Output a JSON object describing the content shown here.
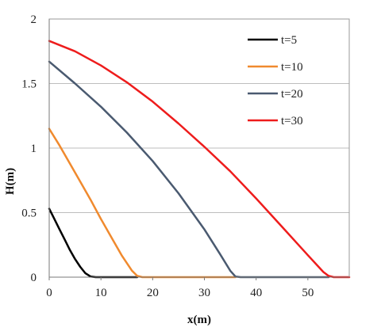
{
  "chart_data": {
    "type": "line",
    "title": "",
    "xlabel": "x(m)",
    "ylabel": "H(m)",
    "xlim": [
      0,
      58
    ],
    "ylim": [
      0,
      2
    ],
    "x_ticks": [
      0,
      10,
      20,
      30,
      40,
      50
    ],
    "x_tick_labels": [
      "0",
      "10",
      "20",
      "30",
      "40",
      "50"
    ],
    "y_ticks": [
      0,
      0.5,
      1,
      1.5,
      2
    ],
    "y_tick_labels": [
      "0",
      "0.5",
      "1",
      "1.5",
      "2"
    ],
    "grid": "horizontal",
    "legend_position": "top-right",
    "series": [
      {
        "name": "t=5",
        "color": "#000000",
        "points": [
          [
            0,
            0.53
          ],
          [
            1,
            0.45
          ],
          [
            2,
            0.37
          ],
          [
            3,
            0.29
          ],
          [
            4,
            0.21
          ],
          [
            5,
            0.14
          ],
          [
            6,
            0.08
          ],
          [
            7,
            0.03
          ],
          [
            8,
            0.005
          ],
          [
            9,
            0.0
          ],
          [
            10,
            0.0
          ],
          [
            17,
            0.0
          ]
        ]
      },
      {
        "name": "t=10",
        "color": "#f08a2e",
        "points": [
          [
            0,
            1.15
          ],
          [
            2,
            1.02
          ],
          [
            4,
            0.88
          ],
          [
            6,
            0.74
          ],
          [
            8,
            0.6
          ],
          [
            10,
            0.45
          ],
          [
            12,
            0.31
          ],
          [
            14,
            0.17
          ],
          [
            16,
            0.05
          ],
          [
            17,
            0.01
          ],
          [
            18,
            0.0
          ],
          [
            19,
            0.0
          ],
          [
            36,
            0.0
          ]
        ]
      },
      {
        "name": "t=20",
        "color": "#4a5a70",
        "points": [
          [
            0,
            1.67
          ],
          [
            5,
            1.5
          ],
          [
            10,
            1.32
          ],
          [
            15,
            1.12
          ],
          [
            20,
            0.9
          ],
          [
            25,
            0.65
          ],
          [
            30,
            0.37
          ],
          [
            33,
            0.18
          ],
          [
            35,
            0.05
          ],
          [
            36,
            0.005
          ],
          [
            37,
            0.0
          ],
          [
            38,
            0.0
          ],
          [
            54,
            0.0
          ]
        ]
      },
      {
        "name": "t=30",
        "color": "#ee1c1c",
        "points": [
          [
            0,
            1.83
          ],
          [
            5,
            1.75
          ],
          [
            10,
            1.64
          ],
          [
            15,
            1.51
          ],
          [
            20,
            1.36
          ],
          [
            25,
            1.19
          ],
          [
            30,
            1.01
          ],
          [
            35,
            0.82
          ],
          [
            40,
            0.61
          ],
          [
            45,
            0.39
          ],
          [
            50,
            0.17
          ],
          [
            53,
            0.04
          ],
          [
            54,
            0.01
          ],
          [
            55,
            0.0
          ],
          [
            58,
            0.0
          ]
        ]
      }
    ]
  }
}
